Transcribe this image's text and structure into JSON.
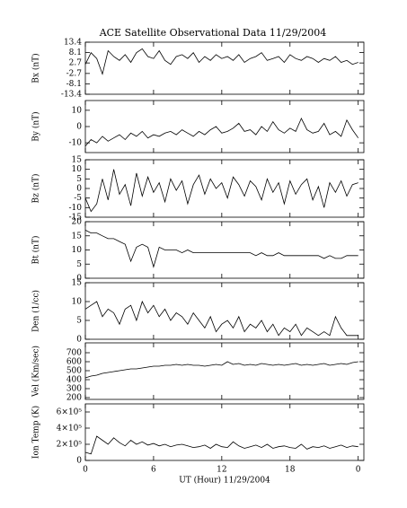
{
  "chart_data": [
    {
      "type": "line",
      "title": "ACE Satellite Observational Data   11/29/2004",
      "ylabel": "Bx (nT)",
      "color": "#000000",
      "x": [
        0,
        0.5,
        1,
        1.5,
        2,
        2.5,
        3,
        3.5,
        4,
        4.5,
        5,
        5.5,
        6,
        6.5,
        7,
        7.5,
        8,
        8.5,
        9,
        9.5,
        10,
        10.5,
        11,
        11.5,
        12,
        12.5,
        13,
        13.5,
        14,
        14.5,
        15,
        15.5,
        16,
        16.5,
        17,
        17.5,
        18,
        18.5,
        19,
        19.5,
        20,
        20.5,
        21,
        21.5,
        22,
        22.5,
        23,
        23.5,
        24
      ],
      "values": [
        2,
        8,
        5,
        -3,
        9,
        6,
        4,
        7,
        3,
        8,
        10,
        6,
        5,
        9,
        4,
        2,
        6,
        7,
        5,
        8,
        3,
        6,
        4,
        7,
        5,
        6,
        4,
        7,
        3,
        5,
        6,
        8,
        4,
        5,
        6,
        3,
        7,
        5,
        4,
        6,
        5,
        3,
        5,
        4,
        6,
        3,
        4,
        2,
        3
      ],
      "ylim": [
        -13.4,
        13.4
      ],
      "yticks": [
        13.4,
        8.1,
        2.7,
        -2.7,
        -8.1,
        -13.4
      ]
    },
    {
      "type": "line",
      "ylabel": "By (nT)",
      "color": "#000000",
      "x": [
        0,
        0.5,
        1,
        1.5,
        2,
        2.5,
        3,
        3.5,
        4,
        4.5,
        5,
        5.5,
        6,
        6.5,
        7,
        7.5,
        8,
        8.5,
        9,
        9.5,
        10,
        10.5,
        11,
        11.5,
        12,
        12.5,
        13,
        13.5,
        14,
        14.5,
        15,
        15.5,
        16,
        16.5,
        17,
        17.5,
        18,
        18.5,
        19,
        19.5,
        20,
        20.5,
        21,
        21.5,
        22,
        22.5,
        23,
        23.5,
        24
      ],
      "values": [
        -12,
        -8,
        -10,
        -6,
        -9,
        -7,
        -5,
        -8,
        -4,
        -6,
        -3,
        -7,
        -5,
        -6,
        -4,
        -3,
        -5,
        -2,
        -4,
        -6,
        -3,
        -5,
        -2,
        0,
        -4,
        -3,
        -1,
        2,
        -3,
        -2,
        -5,
        0,
        -3,
        3,
        -2,
        -4,
        -1,
        -3,
        5,
        -2,
        -4,
        -3,
        2,
        -5,
        -3,
        -6,
        4,
        -2,
        -7
      ],
      "ylim": [
        -16,
        16
      ],
      "yticks": [
        10,
        0,
        -10
      ]
    },
    {
      "type": "line",
      "ylabel": "Bz (nT)",
      "color": "#000000",
      "x": [
        0,
        0.5,
        1,
        1.5,
        2,
        2.5,
        3,
        3.5,
        4,
        4.5,
        5,
        5.5,
        6,
        6.5,
        7,
        7.5,
        8,
        8.5,
        9,
        9.5,
        10,
        10.5,
        11,
        11.5,
        12,
        12.5,
        13,
        13.5,
        14,
        14.5,
        15,
        15.5,
        16,
        16.5,
        17,
        17.5,
        18,
        18.5,
        19,
        19.5,
        20,
        20.5,
        21,
        21.5,
        22,
        22.5,
        23,
        23.5,
        24
      ],
      "values": [
        -5,
        -12,
        -8,
        5,
        -6,
        10,
        -3,
        2,
        -9,
        8,
        -4,
        6,
        -2,
        3,
        -7,
        5,
        -1,
        4,
        -8,
        2,
        7,
        -3,
        5,
        0,
        3,
        -5,
        6,
        2,
        -4,
        4,
        1,
        -6,
        5,
        -2,
        3,
        -8,
        4,
        -3,
        2,
        5,
        -6,
        1,
        -10,
        3,
        -2,
        4,
        -4,
        2,
        3
      ],
      "ylim": [
        -15,
        15
      ],
      "yticks": [
        15,
        10,
        5,
        0,
        -5,
        -10,
        -15
      ]
    },
    {
      "type": "line",
      "ylabel": "Bt (nT)",
      "color": "#000000",
      "x": [
        0,
        0.5,
        1,
        1.5,
        2,
        2.5,
        3,
        3.5,
        4,
        4.5,
        5,
        5.5,
        6,
        6.5,
        7,
        7.5,
        8,
        8.5,
        9,
        9.5,
        10,
        10.5,
        11,
        11.5,
        12,
        12.5,
        13,
        13.5,
        14,
        14.5,
        15,
        15.5,
        16,
        16.5,
        17,
        17.5,
        18,
        18.5,
        19,
        19.5,
        20,
        20.5,
        21,
        21.5,
        22,
        22.5,
        23,
        23.5,
        24
      ],
      "values": [
        17,
        16,
        16,
        15,
        14,
        14,
        13,
        12,
        6,
        11,
        12,
        11,
        4,
        11,
        10,
        10,
        10,
        9,
        10,
        9,
        9,
        9,
        9,
        9,
        9,
        9,
        9,
        9,
        9,
        9,
        8,
        9,
        8,
        8,
        9,
        8,
        8,
        8,
        8,
        8,
        8,
        8,
        7,
        8,
        7,
        7,
        8,
        8,
        8
      ],
      "ylim": [
        0,
        20
      ],
      "yticks": [
        0,
        5,
        10,
        15,
        20
      ]
    },
    {
      "type": "line",
      "ylabel": "Den (1/cc)",
      "color": "#000000",
      "x": [
        0,
        0.5,
        1,
        1.5,
        2,
        2.5,
        3,
        3.5,
        4,
        4.5,
        5,
        5.5,
        6,
        6.5,
        7,
        7.5,
        8,
        8.5,
        9,
        9.5,
        10,
        10.5,
        11,
        11.5,
        12,
        12.5,
        13,
        13.5,
        14,
        14.5,
        15,
        15.5,
        16,
        16.5,
        17,
        17.5,
        18,
        18.5,
        19,
        19.5,
        20,
        20.5,
        21,
        21.5,
        22,
        22.5,
        23,
        23.5,
        24
      ],
      "values": [
        8,
        9,
        10,
        6,
        8,
        7,
        4,
        8,
        9,
        5,
        10,
        7,
        9,
        6,
        8,
        5,
        7,
        6,
        4,
        7,
        5,
        3,
        6,
        2,
        4,
        5,
        3,
        6,
        2,
        4,
        3,
        5,
        2,
        4,
        1,
        3,
        2,
        4,
        1,
        3,
        2,
        1,
        2,
        1,
        6,
        3,
        1,
        1,
        1
      ],
      "ylim": [
        0,
        15
      ],
      "yticks": [
        0,
        5,
        10,
        15
      ]
    },
    {
      "type": "line",
      "ylabel": "Vel (Km/sec)",
      "color": "#000000",
      "x": [
        0,
        0.5,
        1,
        1.5,
        2,
        2.5,
        3,
        3.5,
        4,
        4.5,
        5,
        5.5,
        6,
        6.5,
        7,
        7.5,
        8,
        8.5,
        9,
        9.5,
        10,
        10.5,
        11,
        11.5,
        12,
        12.5,
        13,
        13.5,
        14,
        14.5,
        15,
        15.5,
        16,
        16.5,
        17,
        17.5,
        18,
        18.5,
        19,
        19.5,
        20,
        20.5,
        21,
        21.5,
        22,
        22.5,
        23,
        23.5,
        24
      ],
      "values": [
        420,
        440,
        450,
        470,
        480,
        490,
        500,
        510,
        520,
        520,
        530,
        540,
        550,
        550,
        560,
        560,
        570,
        560,
        570,
        560,
        560,
        550,
        560,
        570,
        560,
        600,
        570,
        580,
        560,
        570,
        560,
        580,
        570,
        560,
        570,
        560,
        570,
        580,
        560,
        570,
        560,
        570,
        580,
        560,
        570,
        580,
        570,
        590,
        600
      ],
      "ylim": [
        180,
        810
      ],
      "yticks": [
        200,
        300,
        400,
        500,
        600,
        700
      ]
    },
    {
      "type": "line",
      "ylabel": "Ion Temp (K)",
      "xlabel": "UT (Hour)  11/29/2004",
      "color": "#000000",
      "x": [
        0,
        0.5,
        1,
        1.5,
        2,
        2.5,
        3,
        3.5,
        4,
        4.5,
        5,
        5.5,
        6,
        6.5,
        7,
        7.5,
        8,
        8.5,
        9,
        9.5,
        10,
        10.5,
        11,
        11.5,
        12,
        12.5,
        13,
        13.5,
        14,
        14.5,
        15,
        15.5,
        16,
        16.5,
        17,
        17.5,
        18,
        18.5,
        19,
        19.5,
        20,
        20.5,
        21,
        21.5,
        22,
        22.5,
        23,
        23.5,
        24
      ],
      "values": [
        100000,
        80000,
        300000,
        250000,
        200000,
        280000,
        220000,
        180000,
        250000,
        200000,
        230000,
        190000,
        210000,
        180000,
        200000,
        170000,
        190000,
        200000,
        180000,
        160000,
        170000,
        190000,
        150000,
        200000,
        170000,
        160000,
        230000,
        180000,
        150000,
        170000,
        190000,
        160000,
        200000,
        150000,
        170000,
        180000,
        160000,
        150000,
        200000,
        140000,
        170000,
        160000,
        180000,
        150000,
        170000,
        190000,
        160000,
        180000,
        170000
      ],
      "ylim": [
        0,
        700000
      ],
      "yticks": [
        0,
        {
          "value": 200000,
          "label": "2×10⁵"
        },
        {
          "value": 400000,
          "label": "4×10⁵"
        },
        {
          "value": 600000,
          "label": "6×10⁵"
        }
      ],
      "xlim": [
        0,
        24.5
      ],
      "xticks": [
        0,
        6,
        12,
        18,
        {
          "value": 24,
          "label": "0"
        }
      ]
    }
  ]
}
